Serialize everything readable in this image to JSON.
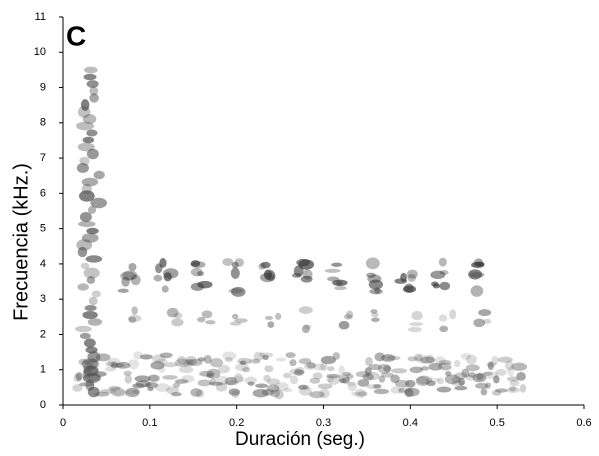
{
  "chart_data": {
    "type": "spectrogram",
    "panel_label": "C",
    "x_label": "Duración (seg.)",
    "y_label": "Frecuencia (kHz.)",
    "xlim": [
      0,
      0.6
    ],
    "xticks": [
      0,
      0.1,
      0.2,
      0.3,
      0.4,
      0.5,
      0.6
    ],
    "ylim": [
      0,
      11
    ],
    "yticks": [
      0,
      1,
      2,
      3,
      4,
      5,
      6,
      7,
      8,
      9,
      10,
      11
    ]
  }
}
